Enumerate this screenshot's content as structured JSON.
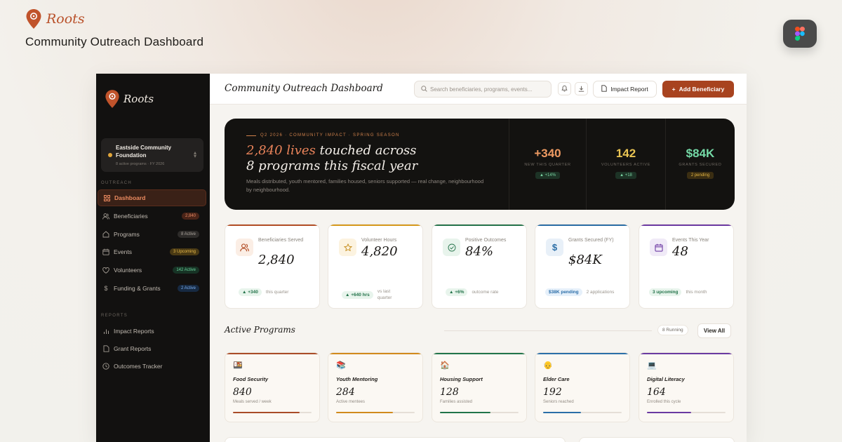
{
  "promo": {
    "brand": "Roots",
    "title": "Community Outreach Dashboard"
  },
  "sidebar": {
    "brand": "Roots",
    "org": {
      "name": "Eastside Community Foundation",
      "meta": "8 active programs · FY 2026"
    },
    "sections": {
      "outreach": "OUTREACH",
      "reports": "REPORTS"
    },
    "items": [
      {
        "label": "Dashboard",
        "badge": ""
      },
      {
        "label": "Beneficiaries",
        "badge": "2,840"
      },
      {
        "label": "Programs",
        "badge": "8 Active"
      },
      {
        "label": "Events",
        "badge": "3 Upcoming"
      },
      {
        "label": "Volunteers",
        "badge": "142 Active"
      },
      {
        "label": "Funding & Grants",
        "badge": "2 Active"
      }
    ],
    "reports": [
      {
        "label": "Impact Reports"
      },
      {
        "label": "Grant Reports"
      },
      {
        "label": "Outcomes Tracker"
      }
    ]
  },
  "topbar": {
    "title": "Community Outreach Dashboard",
    "search_placeholder": "Search beneficiaries, programs, events...",
    "impact_report": "Impact Report",
    "add_beneficiary": "Add Beneficiary"
  },
  "hero": {
    "eyebrow": "Q2 2026 · COMMUNITY IMPACT · SPRING SEASON",
    "headline_accent": "2,840 lives",
    "headline_rest1": " touched across",
    "headline_rest2": "8 programs this fiscal year",
    "sub": "Meals distributed, youth mentored, families housed, seniors supported — real change, neighbourhood by neighbourhood.",
    "stats": [
      {
        "value": "+340",
        "label": "NEW THIS QUARTER",
        "pill": "▲ +14%",
        "color": "#ee9a62"
      },
      {
        "value": "142",
        "label": "VOLUNTEERS ACTIVE",
        "pill": "▲ +18",
        "color": "#e9c453"
      },
      {
        "value": "$84K",
        "label": "GRANTS SECURED",
        "pill": "2 pending",
        "color": "#74d9a6"
      }
    ]
  },
  "kpis": [
    {
      "label": "Beneficiaries Served",
      "value": "2,840",
      "chip": "▲ +340",
      "note": "this quarter"
    },
    {
      "label": "Volunteer Hours",
      "value": "4,820",
      "chip": "▲ +640 hrs",
      "note": "vs last quarter"
    },
    {
      "label": "Positive Outcomes",
      "value": "84%",
      "chip": "▲ +6%",
      "note": "outcome rate"
    },
    {
      "label": "Grants Secured (FY)",
      "value": "$84K",
      "chip": "$38K pending",
      "note": "2 applications"
    },
    {
      "label": "Events This Year",
      "value": "48",
      "chip": "3 upcoming",
      "note": "this month"
    }
  ],
  "programs_section": {
    "title": "Active Programs",
    "running": "8 Running",
    "view_all": "View All"
  },
  "programs": [
    {
      "emoji": "🍱",
      "name": "Food Security",
      "number": "840",
      "desc": "Meals served / week",
      "progress": 0.85,
      "color": "#a94c28"
    },
    {
      "emoji": "📚",
      "name": "Youth Mentoring",
      "number": "284",
      "desc": "Active mentees",
      "progress": 0.72,
      "color": "#d18a1c"
    },
    {
      "emoji": "🏠",
      "name": "Housing Support",
      "number": "128",
      "desc": "Families assisted",
      "progress": 0.64,
      "color": "#21744a"
    },
    {
      "emoji": "👴",
      "name": "Elder Care",
      "number": "192",
      "desc": "Seniors reached",
      "progress": 0.48,
      "color": "#2a6fa8"
    },
    {
      "emoji": "💻",
      "name": "Digital Literacy",
      "number": "164",
      "desc": "Enrolled this cycle",
      "progress": 0.56,
      "color": "#6a3aa2"
    }
  ]
}
